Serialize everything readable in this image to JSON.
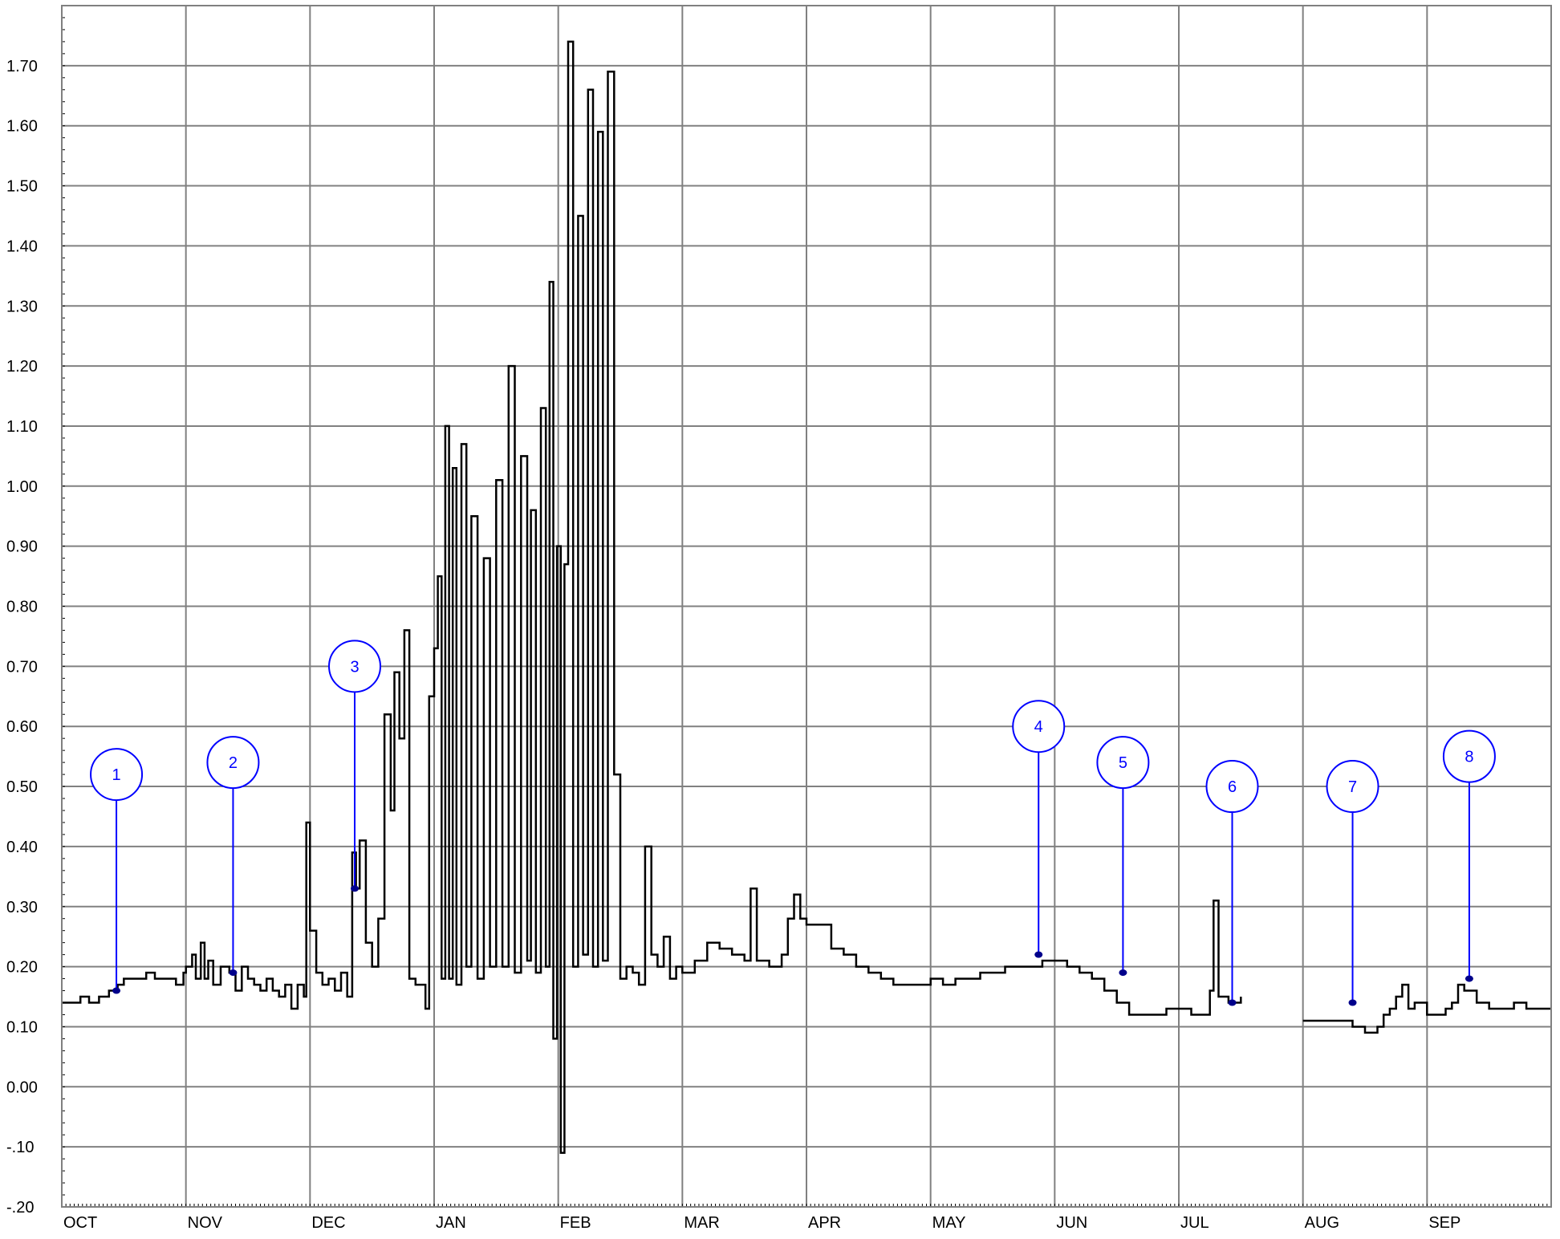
{
  "chart_data": {
    "type": "line",
    "title": "",
    "xlabel": "",
    "ylabel": "",
    "x_categories": [
      "OCT",
      "NOV",
      "DEC",
      "JAN",
      "FEB",
      "MAR",
      "APR",
      "MAY",
      "JUN",
      "JUL",
      "AUG",
      "SEP"
    ],
    "y_tick_labels": [
      "-.20",
      "-.10",
      "0.00",
      "0.10",
      "0.20",
      "0.30",
      "0.40",
      "0.50",
      "0.60",
      "0.70",
      "0.80",
      "0.90",
      "1.00",
      "1.10",
      "1.20",
      "1.30",
      "1.40",
      "1.50",
      "1.60",
      "1.70"
    ],
    "ylim": [
      -0.2,
      1.8
    ],
    "xlim_months": [
      0,
      12
    ],
    "grid": true,
    "legend": "none",
    "colors": {
      "series": "#000000",
      "grid": "#808080",
      "annotation": "#0000ff",
      "marker": "#00008b"
    },
    "series": [
      {
        "points": [
          [
            0.0,
            0.14
          ],
          [
            0.1,
            0.14
          ],
          [
            0.15,
            0.15
          ],
          [
            0.22,
            0.14
          ],
          [
            0.3,
            0.15
          ],
          [
            0.38,
            0.16
          ],
          [
            0.45,
            0.17
          ],
          [
            0.5,
            0.18
          ],
          [
            0.6,
            0.18
          ],
          [
            0.68,
            0.19
          ],
          [
            0.75,
            0.18
          ],
          [
            0.85,
            0.18
          ],
          [
            0.92,
            0.17
          ],
          [
            0.98,
            0.19
          ],
          [
            1.0,
            0.2
          ],
          [
            1.05,
            0.22
          ],
          [
            1.08,
            0.18
          ],
          [
            1.12,
            0.24
          ],
          [
            1.15,
            0.18
          ],
          [
            1.18,
            0.21
          ],
          [
            1.22,
            0.17
          ],
          [
            1.28,
            0.2
          ],
          [
            1.35,
            0.19
          ],
          [
            1.4,
            0.16
          ],
          [
            1.45,
            0.2
          ],
          [
            1.5,
            0.18
          ],
          [
            1.55,
            0.17
          ],
          [
            1.6,
            0.16
          ],
          [
            1.65,
            0.18
          ],
          [
            1.7,
            0.16
          ],
          [
            1.75,
            0.15
          ],
          [
            1.8,
            0.17
          ],
          [
            1.85,
            0.13
          ],
          [
            1.9,
            0.17
          ],
          [
            1.95,
            0.15
          ],
          [
            1.97,
            0.44
          ],
          [
            2.0,
            0.26
          ],
          [
            2.05,
            0.19
          ],
          [
            2.1,
            0.17
          ],
          [
            2.15,
            0.18
          ],
          [
            2.2,
            0.16
          ],
          [
            2.25,
            0.19
          ],
          [
            2.3,
            0.15
          ],
          [
            2.34,
            0.39
          ],
          [
            2.37,
            0.33
          ],
          [
            2.4,
            0.41
          ],
          [
            2.45,
            0.24
          ],
          [
            2.5,
            0.2
          ],
          [
            2.55,
            0.28
          ],
          [
            2.6,
            0.62
          ],
          [
            2.65,
            0.46
          ],
          [
            2.68,
            0.69
          ],
          [
            2.72,
            0.58
          ],
          [
            2.76,
            0.76
          ],
          [
            2.8,
            0.18
          ],
          [
            2.85,
            0.17
          ],
          [
            2.9,
            0.17
          ],
          [
            2.93,
            0.13
          ],
          [
            2.96,
            0.65
          ],
          [
            3.0,
            0.73
          ],
          [
            3.03,
            0.85
          ],
          [
            3.06,
            0.18
          ],
          [
            3.09,
            1.1
          ],
          [
            3.12,
            0.18
          ],
          [
            3.15,
            1.03
          ],
          [
            3.18,
            0.17
          ],
          [
            3.22,
            1.07
          ],
          [
            3.26,
            0.2
          ],
          [
            3.3,
            0.95
          ],
          [
            3.35,
            0.18
          ],
          [
            3.4,
            0.88
          ],
          [
            3.45,
            0.2
          ],
          [
            3.5,
            1.01
          ],
          [
            3.55,
            0.2
          ],
          [
            3.6,
            1.2
          ],
          [
            3.65,
            0.19
          ],
          [
            3.7,
            1.05
          ],
          [
            3.75,
            0.21
          ],
          [
            3.78,
            0.96
          ],
          [
            3.82,
            0.19
          ],
          [
            3.86,
            1.13
          ],
          [
            3.9,
            0.2
          ],
          [
            3.93,
            1.34
          ],
          [
            3.96,
            0.08
          ],
          [
            3.99,
            0.9
          ],
          [
            4.02,
            -0.11
          ],
          [
            4.05,
            0.87
          ],
          [
            4.08,
            1.74
          ],
          [
            4.12,
            0.2
          ],
          [
            4.16,
            1.45
          ],
          [
            4.2,
            0.22
          ],
          [
            4.24,
            1.66
          ],
          [
            4.28,
            0.2
          ],
          [
            4.32,
            1.59
          ],
          [
            4.36,
            0.21
          ],
          [
            4.4,
            1.69
          ],
          [
            4.45,
            0.52
          ],
          [
            4.5,
            0.18
          ],
          [
            4.55,
            0.2
          ],
          [
            4.6,
            0.19
          ],
          [
            4.65,
            0.17
          ],
          [
            4.7,
            0.4
          ],
          [
            4.75,
            0.22
          ],
          [
            4.8,
            0.2
          ],
          [
            4.85,
            0.25
          ],
          [
            4.9,
            0.18
          ],
          [
            4.95,
            0.2
          ],
          [
            5.0,
            0.19
          ],
          [
            5.1,
            0.21
          ],
          [
            5.2,
            0.24
          ],
          [
            5.3,
            0.23
          ],
          [
            5.4,
            0.22
          ],
          [
            5.5,
            0.21
          ],
          [
            5.55,
            0.33
          ],
          [
            5.6,
            0.21
          ],
          [
            5.7,
            0.2
          ],
          [
            5.8,
            0.22
          ],
          [
            5.85,
            0.28
          ],
          [
            5.9,
            0.32
          ],
          [
            5.95,
            0.28
          ],
          [
            6.0,
            0.27
          ],
          [
            6.1,
            0.27
          ],
          [
            6.2,
            0.23
          ],
          [
            6.3,
            0.22
          ],
          [
            6.4,
            0.2
          ],
          [
            6.5,
            0.19
          ],
          [
            6.6,
            0.18
          ],
          [
            6.7,
            0.17
          ],
          [
            6.8,
            0.17
          ],
          [
            6.9,
            0.17
          ],
          [
            7.0,
            0.18
          ],
          [
            7.1,
            0.17
          ],
          [
            7.2,
            0.18
          ],
          [
            7.3,
            0.18
          ],
          [
            7.4,
            0.19
          ],
          [
            7.5,
            0.19
          ],
          [
            7.6,
            0.2
          ],
          [
            7.7,
            0.2
          ],
          [
            7.8,
            0.2
          ],
          [
            7.9,
            0.21
          ],
          [
            8.0,
            0.21
          ],
          [
            8.1,
            0.2
          ],
          [
            8.2,
            0.19
          ],
          [
            8.3,
            0.18
          ],
          [
            8.4,
            0.16
          ],
          [
            8.5,
            0.14
          ],
          [
            8.6,
            0.12
          ],
          [
            8.7,
            0.12
          ],
          [
            8.8,
            0.12
          ],
          [
            8.9,
            0.13
          ],
          [
            9.0,
            0.13
          ],
          [
            9.1,
            0.12
          ],
          [
            9.2,
            0.12
          ],
          [
            9.25,
            0.16
          ],
          [
            9.28,
            0.31
          ],
          [
            9.32,
            0.15
          ],
          [
            9.4,
            0.14
          ],
          [
            9.5,
            0.15
          ]
        ]
      },
      {
        "points": [
          [
            10.0,
            0.11
          ],
          [
            10.1,
            0.11
          ],
          [
            10.2,
            0.11
          ],
          [
            10.3,
            0.11
          ],
          [
            10.4,
            0.1
          ],
          [
            10.5,
            0.09
          ],
          [
            10.55,
            0.09
          ],
          [
            10.6,
            0.1
          ],
          [
            10.65,
            0.12
          ],
          [
            10.7,
            0.13
          ],
          [
            10.75,
            0.15
          ],
          [
            10.8,
            0.17
          ],
          [
            10.85,
            0.13
          ],
          [
            10.9,
            0.14
          ],
          [
            11.0,
            0.12
          ],
          [
            11.1,
            0.12
          ],
          [
            11.15,
            0.13
          ],
          [
            11.2,
            0.14
          ],
          [
            11.25,
            0.17
          ],
          [
            11.3,
            0.16
          ],
          [
            11.4,
            0.14
          ],
          [
            11.5,
            0.13
          ],
          [
            11.6,
            0.13
          ],
          [
            11.7,
            0.14
          ],
          [
            11.8,
            0.13
          ],
          [
            11.9,
            0.13
          ],
          [
            12.0,
            0.13
          ]
        ]
      }
    ],
    "annotations": [
      {
        "label": "1",
        "x": 0.44,
        "y": 0.16,
        "circle_y": 0.52
      },
      {
        "label": "2",
        "x": 1.38,
        "y": 0.19,
        "circle_y": 0.54
      },
      {
        "label": "3",
        "x": 2.36,
        "y": 0.33,
        "circle_y": 0.7
      },
      {
        "label": "4",
        "x": 7.87,
        "y": 0.22,
        "circle_y": 0.6
      },
      {
        "label": "5",
        "x": 8.55,
        "y": 0.19,
        "circle_y": 0.54
      },
      {
        "label": "6",
        "x": 9.43,
        "y": 0.14,
        "circle_y": 0.5
      },
      {
        "label": "7",
        "x": 10.4,
        "y": 0.14,
        "circle_y": 0.5
      },
      {
        "label": "8",
        "x": 11.34,
        "y": 0.18,
        "circle_y": 0.55
      }
    ]
  }
}
